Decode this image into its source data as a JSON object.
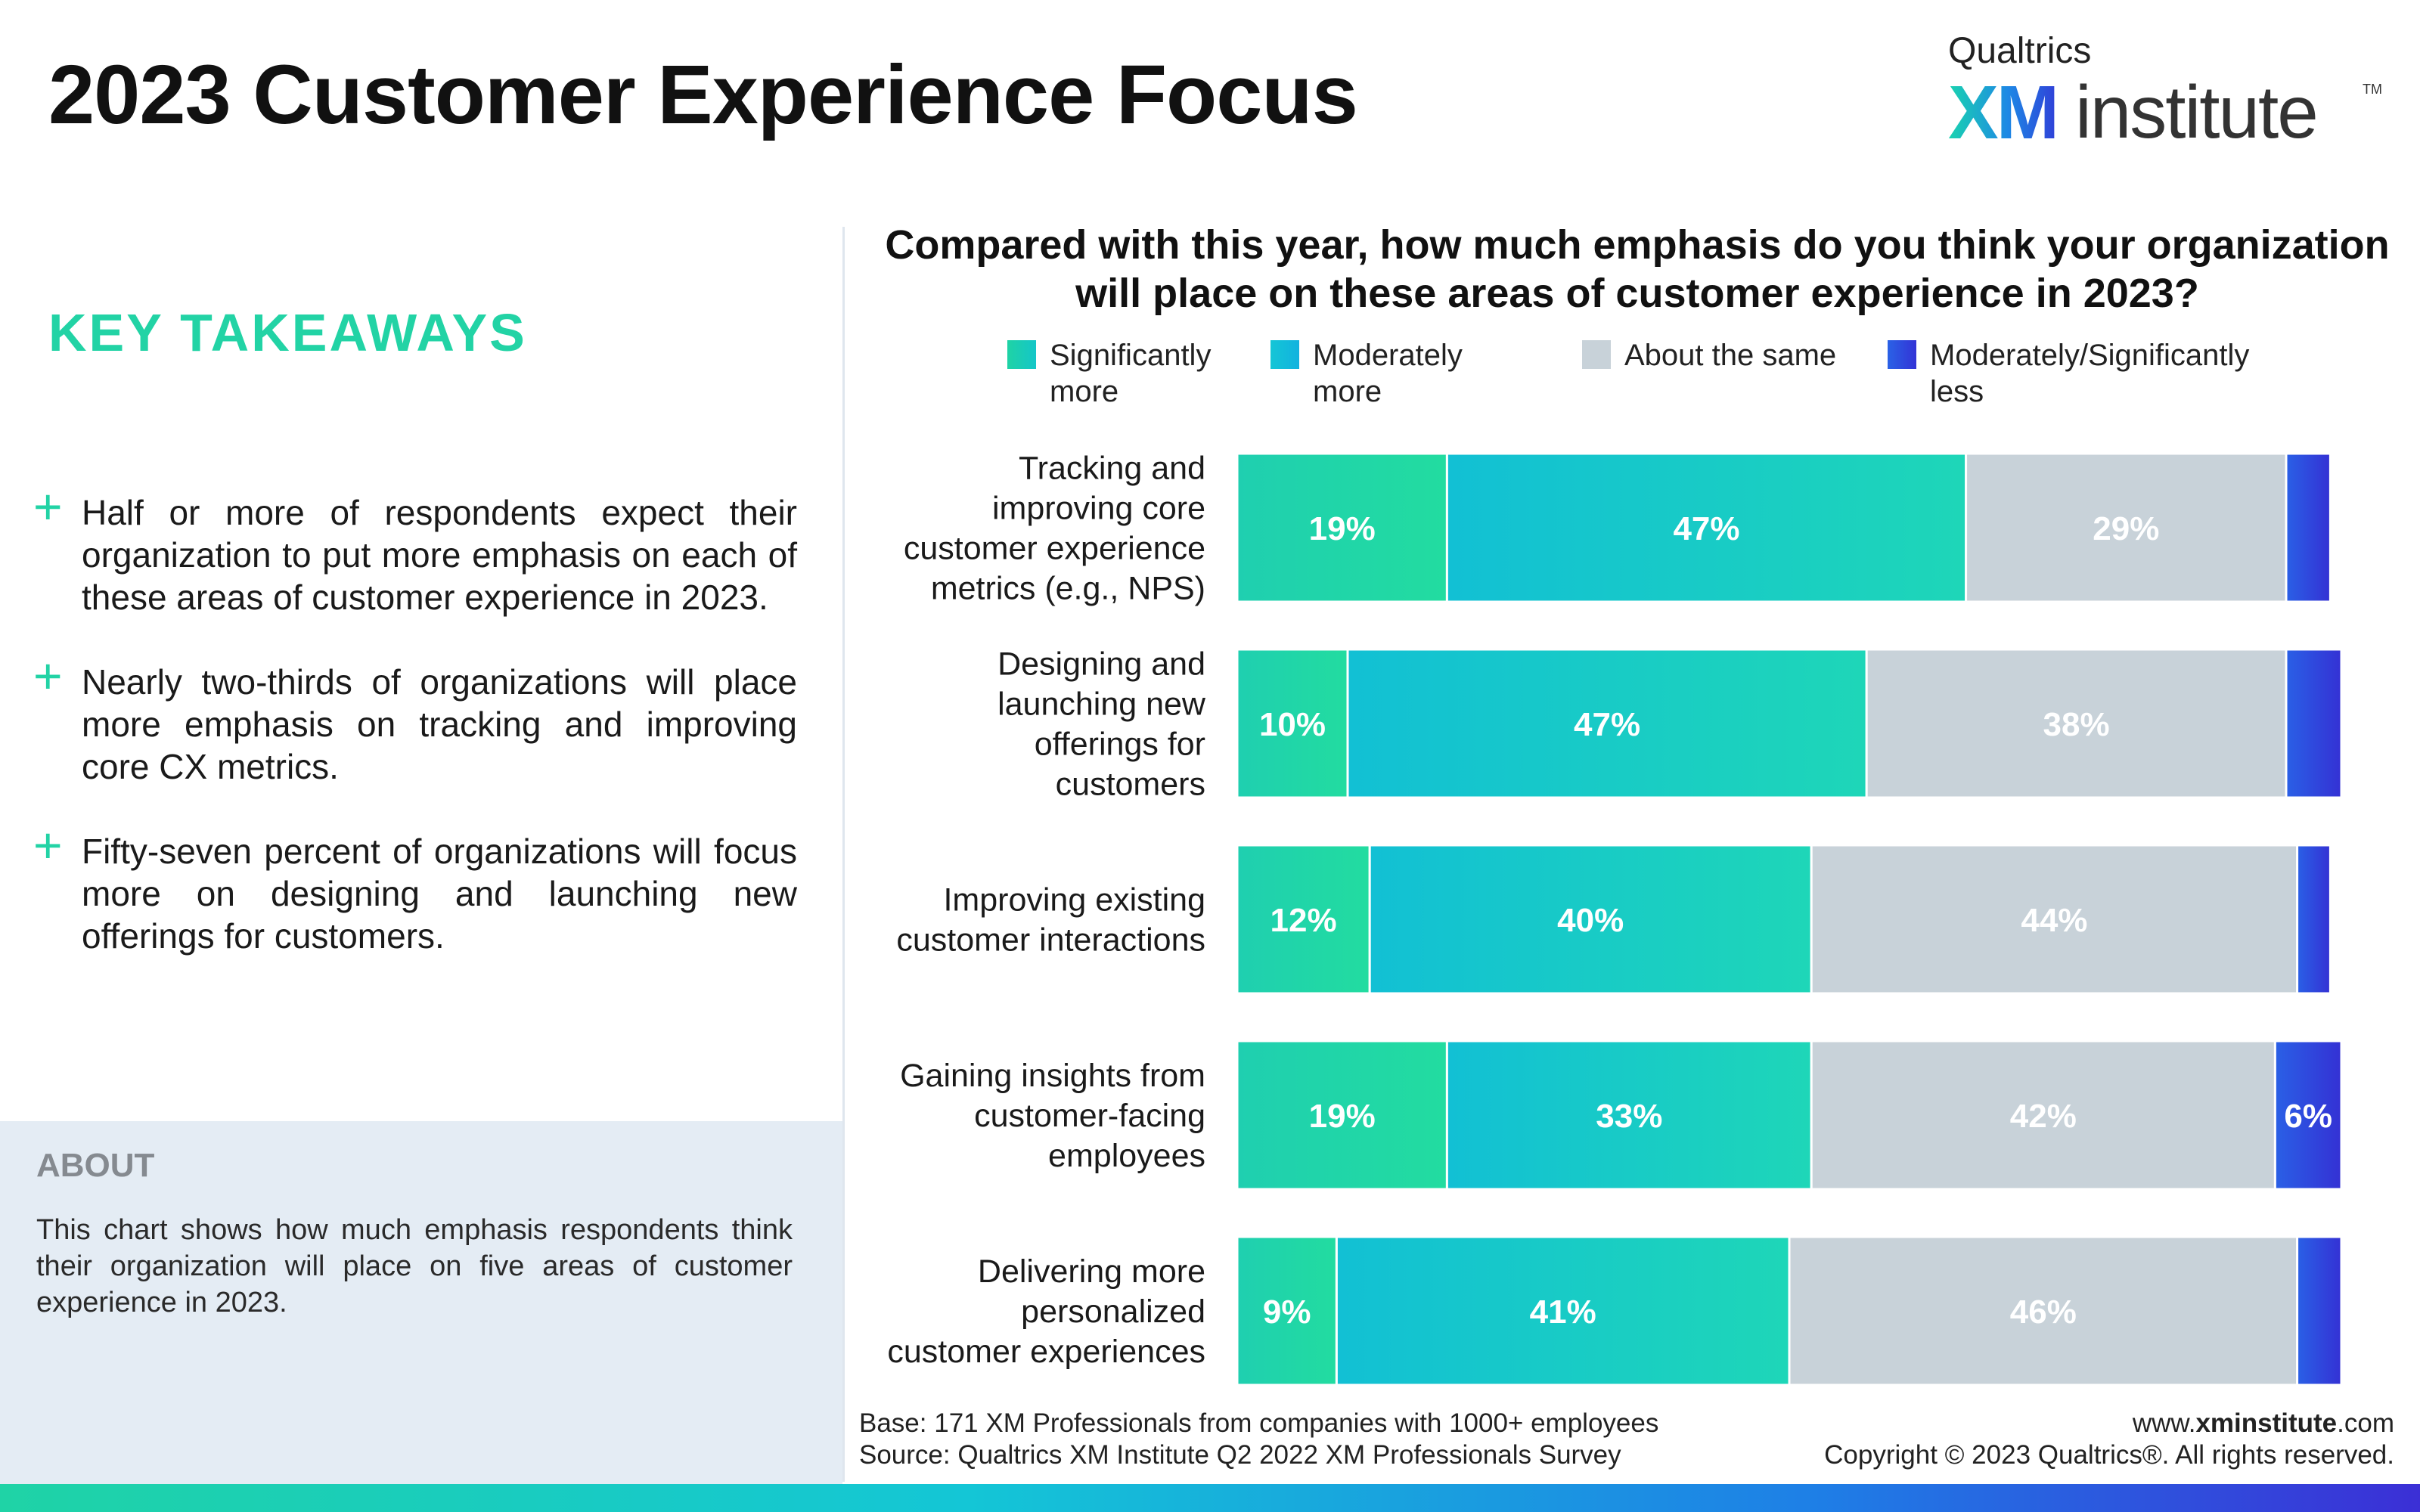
{
  "header": {
    "title": "2023 Customer Experience Focus",
    "brand_top": "Qualtrics",
    "brand_xm": "XM",
    "brand_institute": "institute",
    "brand_tm": "TM"
  },
  "takeaways": {
    "heading": "KEY TAKEAWAYS",
    "items": [
      "Half or more of respondents expect their organization to put more emphasis on each of these areas of customer experience in 2023.",
      "Nearly two-thirds of organizations will place more emphasis on tracking and improving core CX metrics.",
      "Fifty-seven percent of organizations will focus more on designing and launching new offerings for customers."
    ]
  },
  "about": {
    "heading": "ABOUT",
    "text": "This chart shows how much emphasis respondents think their organization will place on five areas of customer experience in 2023."
  },
  "colors": {
    "significantly_more": "#22d3a5",
    "moderately_more": "#14c3d3",
    "about_same": "#c8d2d9",
    "less": "#2f50dc"
  },
  "chart_data": {
    "type": "bar",
    "orientation": "horizontal",
    "stacked": true,
    "title": "Compared with this year, how much emphasis do you think your organization will place on these areas of customer experience in 2023?",
    "legend_position": "top",
    "categories": [
      "Tracking and improving core customer experience metrics (e.g., NPS)",
      "Designing and launching new offerings for customers",
      "Improving existing customer interactions",
      "Gaining insights from customer-facing employees",
      "Delivering more personalized customer experiences"
    ],
    "series": [
      {
        "name": "Significantly more",
        "values": [
          19,
          10,
          12,
          19,
          9
        ]
      },
      {
        "name": "Moderately more",
        "values": [
          47,
          47,
          40,
          33,
          41
        ]
      },
      {
        "name": "About the same",
        "values": [
          29,
          38,
          44,
          42,
          46
        ]
      },
      {
        "name": "Moderately/Significantly less",
        "values": [
          4,
          5,
          3,
          6,
          4
        ]
      }
    ],
    "data_labels": [
      [
        "19%",
        "47%",
        "29%",
        ""
      ],
      [
        "10%",
        "47%",
        "38%",
        ""
      ],
      [
        "12%",
        "40%",
        "44%",
        ""
      ],
      [
        "19%",
        "33%",
        "42%",
        "6%"
      ],
      [
        "9%",
        "41%",
        "46%",
        ""
      ]
    ],
    "units": "%"
  },
  "footer": {
    "base": "Base: 171 XM Professionals from companies with 1000+ employees",
    "source": "Source: Qualtrics XM Institute Q2 2022 XM Professionals Survey",
    "site_prefix": "www.",
    "site_bold": "xminstitute",
    "site_suffix": ".com",
    "copyright": "Copyright © 2023 Qualtrics®. All rights reserved."
  }
}
